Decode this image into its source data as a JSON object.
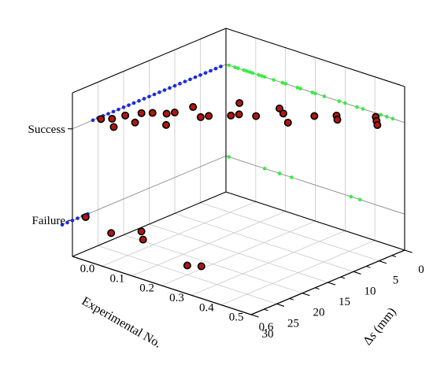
{
  "chart_data": {
    "type": "scatter",
    "projection": "3d",
    "title": "",
    "xlabel": "Experimental No.",
    "ylabel": "Δs (mm)",
    "zlabel": "",
    "x_ticks": [
      "0",
      "5",
      "10",
      "15",
      "20",
      "25",
      "30"
    ],
    "y_ticks": [
      "0.0",
      "0.1",
      "0.2",
      "0.3",
      "0.4",
      "0.5",
      "0.6"
    ],
    "z_ticks": [
      "Failure",
      "Success"
    ],
    "xlim": [
      0,
      30
    ],
    "ylim": [
      0,
      0.6
    ],
    "z_categories": [
      "Failure",
      "Success"
    ],
    "grid": true,
    "colors": {
      "point_fill": "#b3160f",
      "point_stroke": "#000000",
      "wall_projection": "#1a2be0",
      "right_projection": "#34f03a",
      "grid": "#c8c8c8",
      "guide_line": "#8a8a8a"
    },
    "series": [
      {
        "marker": "sphere",
        "points": [
          {
            "experiment": 1,
            "delta_s": 0.52,
            "result": "Success"
          },
          {
            "experiment": 2,
            "delta_s": 0.54,
            "result": "Success"
          },
          {
            "experiment": 3,
            "delta_s": 0.56,
            "result": "Success"
          },
          {
            "experiment": 4,
            "delta_s": 0.44,
            "result": "Success"
          },
          {
            "experiment": 5,
            "delta_s": 0.46,
            "result": "Success"
          },
          {
            "experiment": 6,
            "delta_s": 0.4,
            "result": "Success"
          },
          {
            "experiment": 7,
            "delta_s": 0.3,
            "result": "Success"
          },
          {
            "experiment": 8,
            "delta_s": 0.33,
            "result": "Success"
          },
          {
            "experiment": 9,
            "delta_s": 0.2,
            "result": "Success"
          },
          {
            "experiment": 10,
            "delta_s": 0.38,
            "result": "Success"
          },
          {
            "experiment": 11,
            "delta_s": 0.29,
            "result": "Success"
          },
          {
            "experiment": 12,
            "delta_s": 0.25,
            "result": "Success"
          },
          {
            "experiment": 13,
            "delta_s": 0.24,
            "result": "Success"
          },
          {
            "experiment": 14,
            "delta_s": 0.13,
            "result": "Success"
          },
          {
            "experiment": 15,
            "delta_s": 0.2,
            "result": "Success"
          },
          {
            "experiment": 16,
            "delta_s": 0.19,
            "result": "Success"
          },
          {
            "experiment": 17,
            "delta_s": 0.12,
            "result": "Success"
          },
          {
            "experiment": 18,
            "delta_s": 0.11,
            "result": "Success"
          },
          {
            "experiment": 19,
            "delta_s": 0.08,
            "result": "Success"
          },
          {
            "experiment": 20,
            "delta_s": 0.06,
            "result": "Success"
          },
          {
            "experiment": 21,
            "delta_s": 0.16,
            "result": "Success"
          },
          {
            "experiment": 22,
            "delta_s": 0.04,
            "result": "Success"
          },
          {
            "experiment": 23,
            "delta_s": 0.09,
            "result": "Success"
          },
          {
            "experiment": 24,
            "delta_s": 0.03,
            "result": "Success"
          },
          {
            "experiment": 25,
            "delta_s": 0.01,
            "result": "Success"
          },
          {
            "experiment": 26,
            "delta_s": 0.07,
            "result": "Success"
          },
          {
            "experiment": 27,
            "delta_s": 0.18,
            "result": "Failure"
          },
          {
            "experiment": 28,
            "delta_s": 0.01,
            "result": "Failure"
          },
          {
            "experiment": 29,
            "delta_s": 0.22,
            "result": "Failure"
          },
          {
            "experiment": 30,
            "delta_s": 0.13,
            "result": "Failure"
          },
          {
            "experiment": 31,
            "delta_s": 0.45,
            "result": "Failure"
          },
          {
            "experiment": 32,
            "delta_s": 0.42,
            "result": "Failure"
          }
        ]
      }
    ]
  }
}
